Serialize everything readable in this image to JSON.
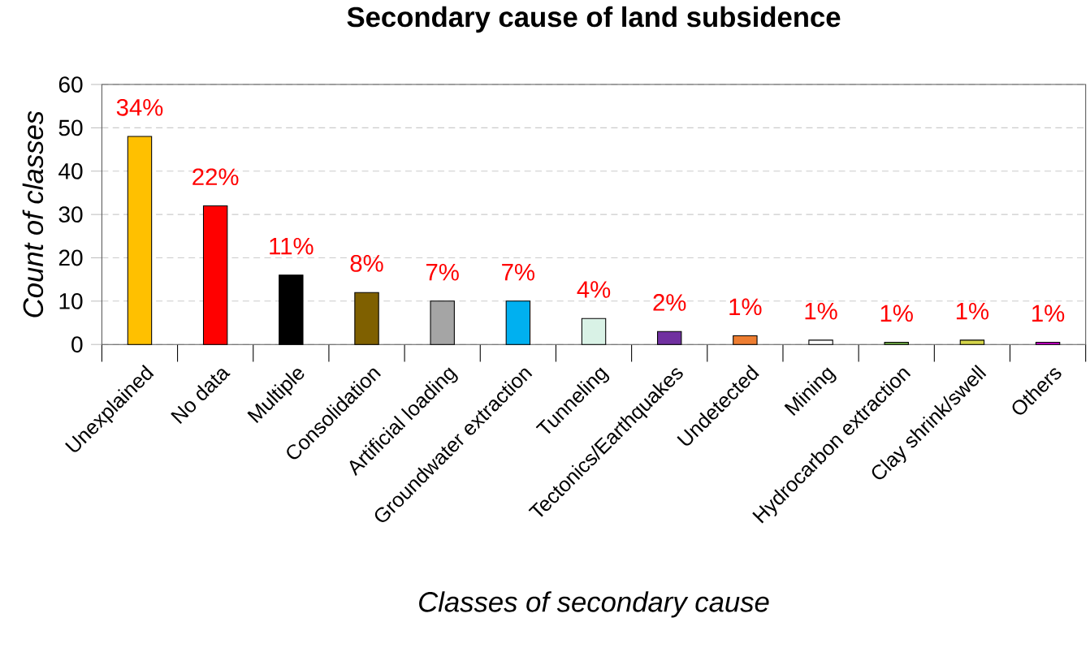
{
  "chart_data": {
    "type": "bar",
    "title": "Secondary cause of land subsidence",
    "xlabel": "Classes of secondary cause",
    "ylabel": "Count of classes",
    "categories": [
      "Unexplained",
      "No data",
      "Multiple",
      "Consolidation",
      "Artificial loading",
      "Groundwater extraction",
      "Tunneling",
      "Tectonics/Earthquakes",
      "Undetected",
      "Mining",
      "Hydrocarbon extraction",
      "Clay shrink/swell",
      "Others"
    ],
    "values": [
      48,
      32,
      16,
      12,
      10,
      10,
      6,
      3,
      2,
      1,
      0.5,
      1,
      0.5
    ],
    "colors": [
      "#ffc000",
      "#ff0000",
      "#000000",
      "#7f6000",
      "#a5a5a5",
      "#00b0f0",
      "#d9f2e6",
      "#7030a0",
      "#ed7d31",
      "#ffffff",
      "#70ad47",
      "#d4d44a",
      "#cc00cc"
    ],
    "annotations": [
      {
        "text": "34%",
        "x": "Unexplained",
        "y": 48
      },
      {
        "text": "22%",
        "x": "No data",
        "y": 32
      },
      {
        "text": "11%",
        "x": "Multiple",
        "y": 16
      },
      {
        "text": "8%",
        "x": "Consolidation",
        "y": 12
      },
      {
        "text": "7%",
        "x": "Artificial loading",
        "y": 10
      },
      {
        "text": "7%",
        "x": "Groundwater extraction",
        "y": 10
      },
      {
        "text": "4%",
        "x": "Tunneling",
        "y": 6
      },
      {
        "text": "2%",
        "x": "Tectonics/Earthquakes",
        "y": 3
      },
      {
        "text": "1%",
        "x": "Undetected",
        "y": 2
      },
      {
        "text": "1%",
        "x": "Mining",
        "y": 1
      },
      {
        "text": "1%",
        "x": "Hydrocarbon extraction",
        "y": 0.5
      },
      {
        "text": "1%",
        "x": "Clay shrink/swell",
        "y": 1
      },
      {
        "text": "1%",
        "x": "Others",
        "y": 0.5
      }
    ],
    "ylim": [
      0,
      60
    ],
    "yticks": [
      0,
      10,
      20,
      30,
      40,
      50,
      60
    ],
    "grid": "y"
  }
}
